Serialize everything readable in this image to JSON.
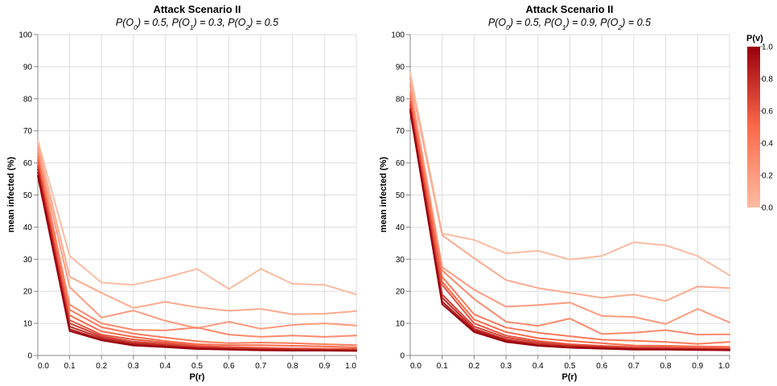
{
  "colors": {
    "scale_low": "#fcbba1",
    "scale_mid": "#fb6a4a",
    "scale_high": "#99000d",
    "grid": "#dddddd",
    "axis": "#888888"
  },
  "legend": {
    "title": "P(v)",
    "ticks": [
      "1.0",
      "0.8",
      "0.6",
      "0.4",
      "0.2",
      "0.0"
    ],
    "tick_values": [
      1.0,
      0.8,
      0.6,
      0.4,
      0.2,
      0.0
    ],
    "placement": "top-right"
  },
  "chart_data": [
    {
      "type": "line",
      "title": "Attack Scenario II",
      "subtitle_parts": [
        {
          "t": "P(O"
        },
        {
          "t": "0",
          "sub": true
        },
        {
          "t": ") = 0.5, P(O"
        },
        {
          "t": "1",
          "sub": true
        },
        {
          "t": ") = 0.3, P(O"
        },
        {
          "t": "2",
          "sub": true
        },
        {
          "t": ") = 0.5"
        }
      ],
      "xlabel": "P(r)",
      "ylabel": "mean infected (%)",
      "xlim": [
        0,
        1
      ],
      "ylim": [
        0,
        100
      ],
      "x_ticks": [
        "0.0",
        "0.1",
        "0.2",
        "0.3",
        "0.4",
        "0.5",
        "0.6",
        "0.7",
        "0.8",
        "0.9",
        "1.0"
      ],
      "y_ticks": [
        "0",
        "10",
        "20",
        "30",
        "40",
        "50",
        "60",
        "70",
        "80",
        "90",
        "100"
      ],
      "grid": true,
      "x": [
        0.0,
        0.1,
        0.2,
        0.3,
        0.4,
        0.5,
        0.6,
        0.7,
        0.8,
        0.9,
        1.0
      ],
      "series": [
        {
          "pv": 0.0,
          "values": [
            67,
            31,
            22.7,
            22,
            24.2,
            27,
            20.7,
            27,
            22.3,
            22,
            19
          ]
        },
        {
          "pv": 0.1,
          "values": [
            66,
            24.5,
            19.5,
            14.8,
            16.7,
            15,
            13.9,
            14.5,
            12.8,
            13,
            13.8
          ]
        },
        {
          "pv": 0.2,
          "values": [
            64,
            21.3,
            11.8,
            14,
            10.8,
            8.5,
            10.5,
            8.3,
            9.5,
            10,
            9.3
          ]
        },
        {
          "pv": 0.3,
          "values": [
            63,
            15.8,
            10,
            8,
            7.8,
            8.7,
            6.5,
            5.8,
            6.2,
            5.8,
            6.2
          ]
        },
        {
          "pv": 0.4,
          "values": [
            62,
            14.2,
            8.8,
            6.8,
            5.6,
            4.4,
            3.8,
            4,
            3.8,
            3.5,
            3.2
          ]
        },
        {
          "pv": 0.5,
          "values": [
            61,
            12.5,
            7.5,
            5.8,
            4.5,
            3.5,
            3.2,
            3.2,
            3,
            2.8,
            2.5
          ]
        },
        {
          "pv": 0.6,
          "values": [
            60,
            11,
            6.5,
            5,
            4,
            3,
            2.6,
            2.4,
            2.2,
            2.1,
            2
          ]
        },
        {
          "pv": 0.7,
          "values": [
            59,
            10,
            6,
            4.3,
            3.5,
            2.6,
            2.3,
            2,
            1.9,
            1.8,
            1.8
          ]
        },
        {
          "pv": 0.8,
          "values": [
            58,
            9,
            5.5,
            3.8,
            3.1,
            2.4,
            2.1,
            1.9,
            1.8,
            1.7,
            1.6
          ]
        },
        {
          "pv": 0.9,
          "values": [
            57,
            8.2,
            5,
            3.4,
            2.8,
            2.2,
            1.9,
            1.7,
            1.6,
            1.6,
            1.5
          ]
        },
        {
          "pv": 1.0,
          "values": [
            56,
            7.6,
            4.7,
            3.1,
            2.6,
            2.0,
            1.8,
            1.6,
            1.5,
            1.5,
            1.4
          ]
        }
      ]
    },
    {
      "type": "line",
      "title": "Attack Scenario II",
      "subtitle_parts": [
        {
          "t": "P(O"
        },
        {
          "t": "0",
          "sub": true
        },
        {
          "t": ") = 0.5, P(O"
        },
        {
          "t": "1",
          "sub": true
        },
        {
          "t": ") = 0.9, P(O"
        },
        {
          "t": "2",
          "sub": true
        },
        {
          "t": ") = 0.5"
        }
      ],
      "xlabel": "P(r)",
      "ylabel": "mean infected (%)",
      "xlim": [
        0,
        1
      ],
      "ylim": [
        0,
        100
      ],
      "x_ticks": [
        "0.0",
        "0.1",
        "0.2",
        "0.3",
        "0.4",
        "0.5",
        "0.6",
        "0.7",
        "0.8",
        "0.9",
        "1.0"
      ],
      "y_ticks": [
        "0",
        "10",
        "20",
        "30",
        "40",
        "50",
        "60",
        "70",
        "80",
        "90",
        "100"
      ],
      "grid": true,
      "x": [
        0.0,
        0.1,
        0.2,
        0.3,
        0.4,
        0.5,
        0.6,
        0.7,
        0.8,
        0.9,
        1.0
      ],
      "series": [
        {
          "pv": 0.0,
          "values": [
            88,
            38,
            36,
            31.8,
            32.6,
            29.9,
            31,
            35.3,
            34.3,
            31,
            25
          ]
        },
        {
          "pv": 0.1,
          "values": [
            86,
            37.5,
            30.3,
            23.5,
            21,
            19.5,
            18,
            19,
            17,
            21.5,
            21
          ]
        },
        {
          "pv": 0.2,
          "values": [
            84,
            27.5,
            20.5,
            15.2,
            15.7,
            16.5,
            12.3,
            12,
            9.8,
            14.5,
            10.3
          ]
        },
        {
          "pv": 0.3,
          "values": [
            82,
            26.5,
            17.6,
            10.5,
            9.2,
            11.5,
            6.7,
            7.1,
            7.9,
            6.5,
            6.6
          ]
        },
        {
          "pv": 0.4,
          "values": [
            81,
            24.5,
            12.8,
            8.7,
            7.1,
            6,
            4.9,
            4.6,
            4.2,
            3.6,
            4.2
          ]
        },
        {
          "pv": 0.5,
          "values": [
            80,
            23,
            11.2,
            7.3,
            5.4,
            4.5,
            3.8,
            3.1,
            3,
            2.8,
            2.7
          ]
        },
        {
          "pv": 0.6,
          "values": [
            79,
            22,
            10,
            6.2,
            4.5,
            3.5,
            3,
            2.6,
            2.5,
            2.3,
            2.2
          ]
        },
        {
          "pv": 0.7,
          "values": [
            78,
            19,
            9,
            5.6,
            4,
            3.1,
            2.7,
            2.3,
            2.2,
            2.1,
            2
          ]
        },
        {
          "pv": 0.8,
          "values": [
            77,
            18,
            8.3,
            5,
            3.5,
            2.8,
            2.5,
            2.1,
            2,
            1.9,
            1.8
          ]
        },
        {
          "pv": 0.9,
          "values": [
            76.5,
            16.8,
            7.8,
            4.6,
            3.2,
            2.6,
            2.3,
            2,
            1.9,
            1.8,
            1.7
          ]
        },
        {
          "pv": 1.0,
          "values": [
            76,
            16,
            7.3,
            4.2,
            3,
            2.4,
            2.1,
            1.8,
            1.8,
            1.7,
            1.6
          ]
        }
      ]
    }
  ]
}
